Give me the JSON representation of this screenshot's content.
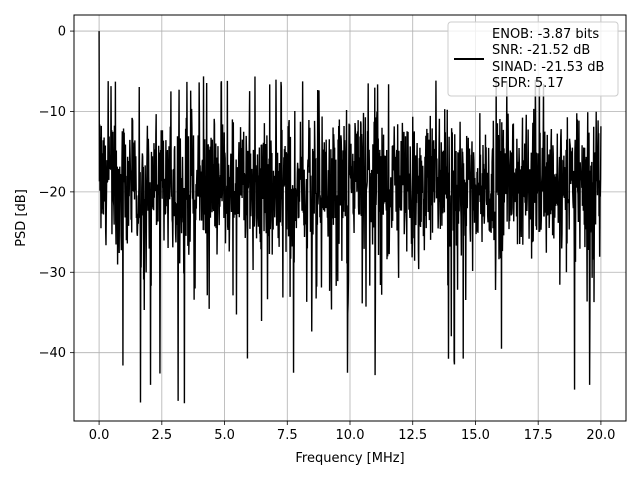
{
  "chart_data": {
    "type": "line",
    "title": "",
    "xlabel": "Frequency [MHz]",
    "ylabel": "PSD [dB]",
    "xlim": [
      -1.0,
      21.0
    ],
    "ylim": [
      -48.5,
      2.0
    ],
    "xticks": [
      0.0,
      2.5,
      5.0,
      7.5,
      10.0,
      12.5,
      15.0,
      17.5,
      20.0
    ],
    "xtick_labels": [
      "0.0",
      "2.5",
      "5.0",
      "7.5",
      "10.0",
      "12.5",
      "15.0",
      "17.5",
      "20.0"
    ],
    "yticks": [
      0,
      -10,
      -20,
      -30,
      -40
    ],
    "ytick_labels": [
      "0",
      "−10",
      "−20",
      "−30",
      "−40"
    ],
    "grid": true,
    "legend_position": "top-right",
    "legend_entries": [
      "ENOB: -3.87 bits",
      "SNR: -21.52 dB",
      "SINAD: -21.53 dB",
      "SFDR: 5.17"
    ],
    "series": [
      {
        "color": "#000000",
        "x_start": 0.0,
        "x_end": 20.0,
        "peak": {
          "x": 0.0,
          "y": 0.0
        },
        "noise_floor": {
          "mean": -19.0,
          "upper": -6.5,
          "lower": -46.3
        },
        "notable_dips": [
          {
            "x": 1.65,
            "y": -46.2
          },
          {
            "x": 3.4,
            "y": -46.3
          },
          {
            "x": 3.15,
            "y": -46.0
          },
          {
            "x": 7.75,
            "y": -42.5
          },
          {
            "x": 9.9,
            "y": -42.5
          },
          {
            "x": 11.0,
            "y": -42.8
          },
          {
            "x": 18.95,
            "y": -44.6
          },
          {
            "x": 19.55,
            "y": -44.0
          },
          {
            "x": 14.15,
            "y": -41.0
          },
          {
            "x": 0.95,
            "y": -41.6
          },
          {
            "x": 2.05,
            "y": -44.0
          }
        ]
      }
    ]
  }
}
